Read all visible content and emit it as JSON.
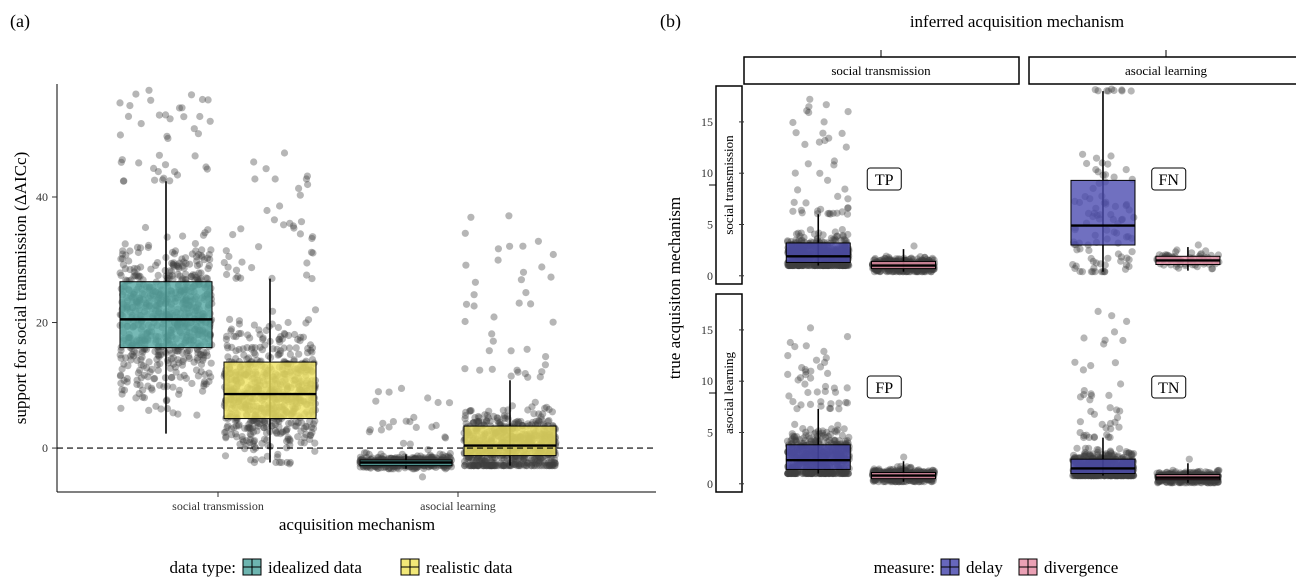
{
  "chart_data": [
    {
      "panel_label": "(a)",
      "type": "boxplot",
      "xlabel": "acquisition mechanism",
      "ylabel": "support for social transmission (ΔAICc)",
      "ylim": [
        -7,
        58
      ],
      "yticks": [
        0,
        20,
        40
      ],
      "reference_line": {
        "y": 0,
        "style": "dashed"
      },
      "grid": false,
      "categories": [
        "social transmission",
        "asocial learning"
      ],
      "legend": {
        "title": "data type:",
        "position": "bottom",
        "entries": [
          "idealized data",
          "realistic data"
        ]
      },
      "series": [
        {
          "name": "idealized data",
          "color": "#54a8a2",
          "boxes": [
            {
              "category": "social transmission",
              "q1": 16,
              "median": 20.5,
              "q3": 26.5,
              "whisker_low": 2.3,
              "whisker_high": 42.5,
              "point_min": 2.3,
              "point_max": 57
            },
            {
              "category": "asocial learning",
              "q1": -2.8,
              "median": -2.3,
              "q3": -1.9,
              "whisker_low": -3.3,
              "whisker_high": -1.0,
              "point_min": -4.6,
              "point_max": 9.5
            }
          ]
        },
        {
          "name": "realistic data",
          "color": "#f0e460",
          "boxes": [
            {
              "category": "social transmission",
              "q1": 4.7,
              "median": 8.6,
              "q3": 13.7,
              "whisker_low": -2.3,
              "whisker_high": 27,
              "point_min": -2.5,
              "point_max": 47
            },
            {
              "category": "asocial learning",
              "q1": -1.2,
              "median": 0.4,
              "q3": 3.5,
              "whisker_low": -2.8,
              "whisker_high": 10.8,
              "point_min": -2.8,
              "point_max": 37
            }
          ]
        }
      ]
    },
    {
      "panel_label": "(b)",
      "type": "boxplot",
      "title": "inferred acquisition mechanism",
      "ylabel": "true acquisiton mechanism",
      "ylim": [
        -0.8,
        18.5
      ],
      "yticks": [
        0,
        5,
        10,
        15
      ],
      "grid": false,
      "column_facets": [
        "social transmission",
        "asocial learning"
      ],
      "row_facets": [
        "social transmission",
        "asocial learning"
      ],
      "legend": {
        "title": "measure:",
        "position": "bottom",
        "entries": [
          "delay",
          "divergence"
        ]
      },
      "series_colors": {
        "delay": "#4c4cb0",
        "divergence": "#e890a8"
      },
      "facets": [
        {
          "row": "social transmission",
          "column": "social transmission",
          "label": "TP",
          "delay": {
            "q1": 1.3,
            "median": 1.9,
            "q3": 3.2,
            "whisker_low": 1.0,
            "whisker_high": 6.0,
            "point_max": 17.2
          },
          "divergence": {
            "q1": 0.7,
            "median": 1.0,
            "q3": 1.4,
            "whisker_low": 0.4,
            "whisker_high": 2.6,
            "point_max": 2.9
          }
        },
        {
          "row": "social transmission",
          "column": "asocial learning",
          "label": "FN",
          "delay": {
            "q1": 3.0,
            "median": 4.9,
            "q3": 9.3,
            "whisker_low": 0.4,
            "whisker_high": 18.0,
            "point_max": 18.2
          },
          "divergence": {
            "q1": 1.1,
            "median": 1.5,
            "q3": 1.9,
            "whisker_low": 0.5,
            "whisker_high": 2.8,
            "point_max": 3.0
          }
        },
        {
          "row": "asocial learning",
          "column": "social transmission",
          "label": "FP",
          "delay": {
            "q1": 1.4,
            "median": 2.3,
            "q3": 3.8,
            "whisker_low": 1.0,
            "whisker_high": 7.3,
            "point_max": 15.2
          },
          "divergence": {
            "q1": 0.5,
            "median": 0.8,
            "q3": 1.1,
            "whisker_low": 0.2,
            "whisker_high": 2.2,
            "point_max": 2.6
          }
        },
        {
          "row": "asocial learning",
          "column": "asocial learning",
          "label": "TN",
          "delay": {
            "q1": 1.0,
            "median": 1.5,
            "q3": 2.4,
            "whisker_low": 0.8,
            "whisker_high": 4.5,
            "point_max": 16.8
          },
          "divergence": {
            "q1": 0.4,
            "median": 0.6,
            "q3": 0.9,
            "whisker_low": 0.1,
            "whisker_high": 2.0,
            "point_max": 2.4
          }
        }
      ]
    }
  ]
}
